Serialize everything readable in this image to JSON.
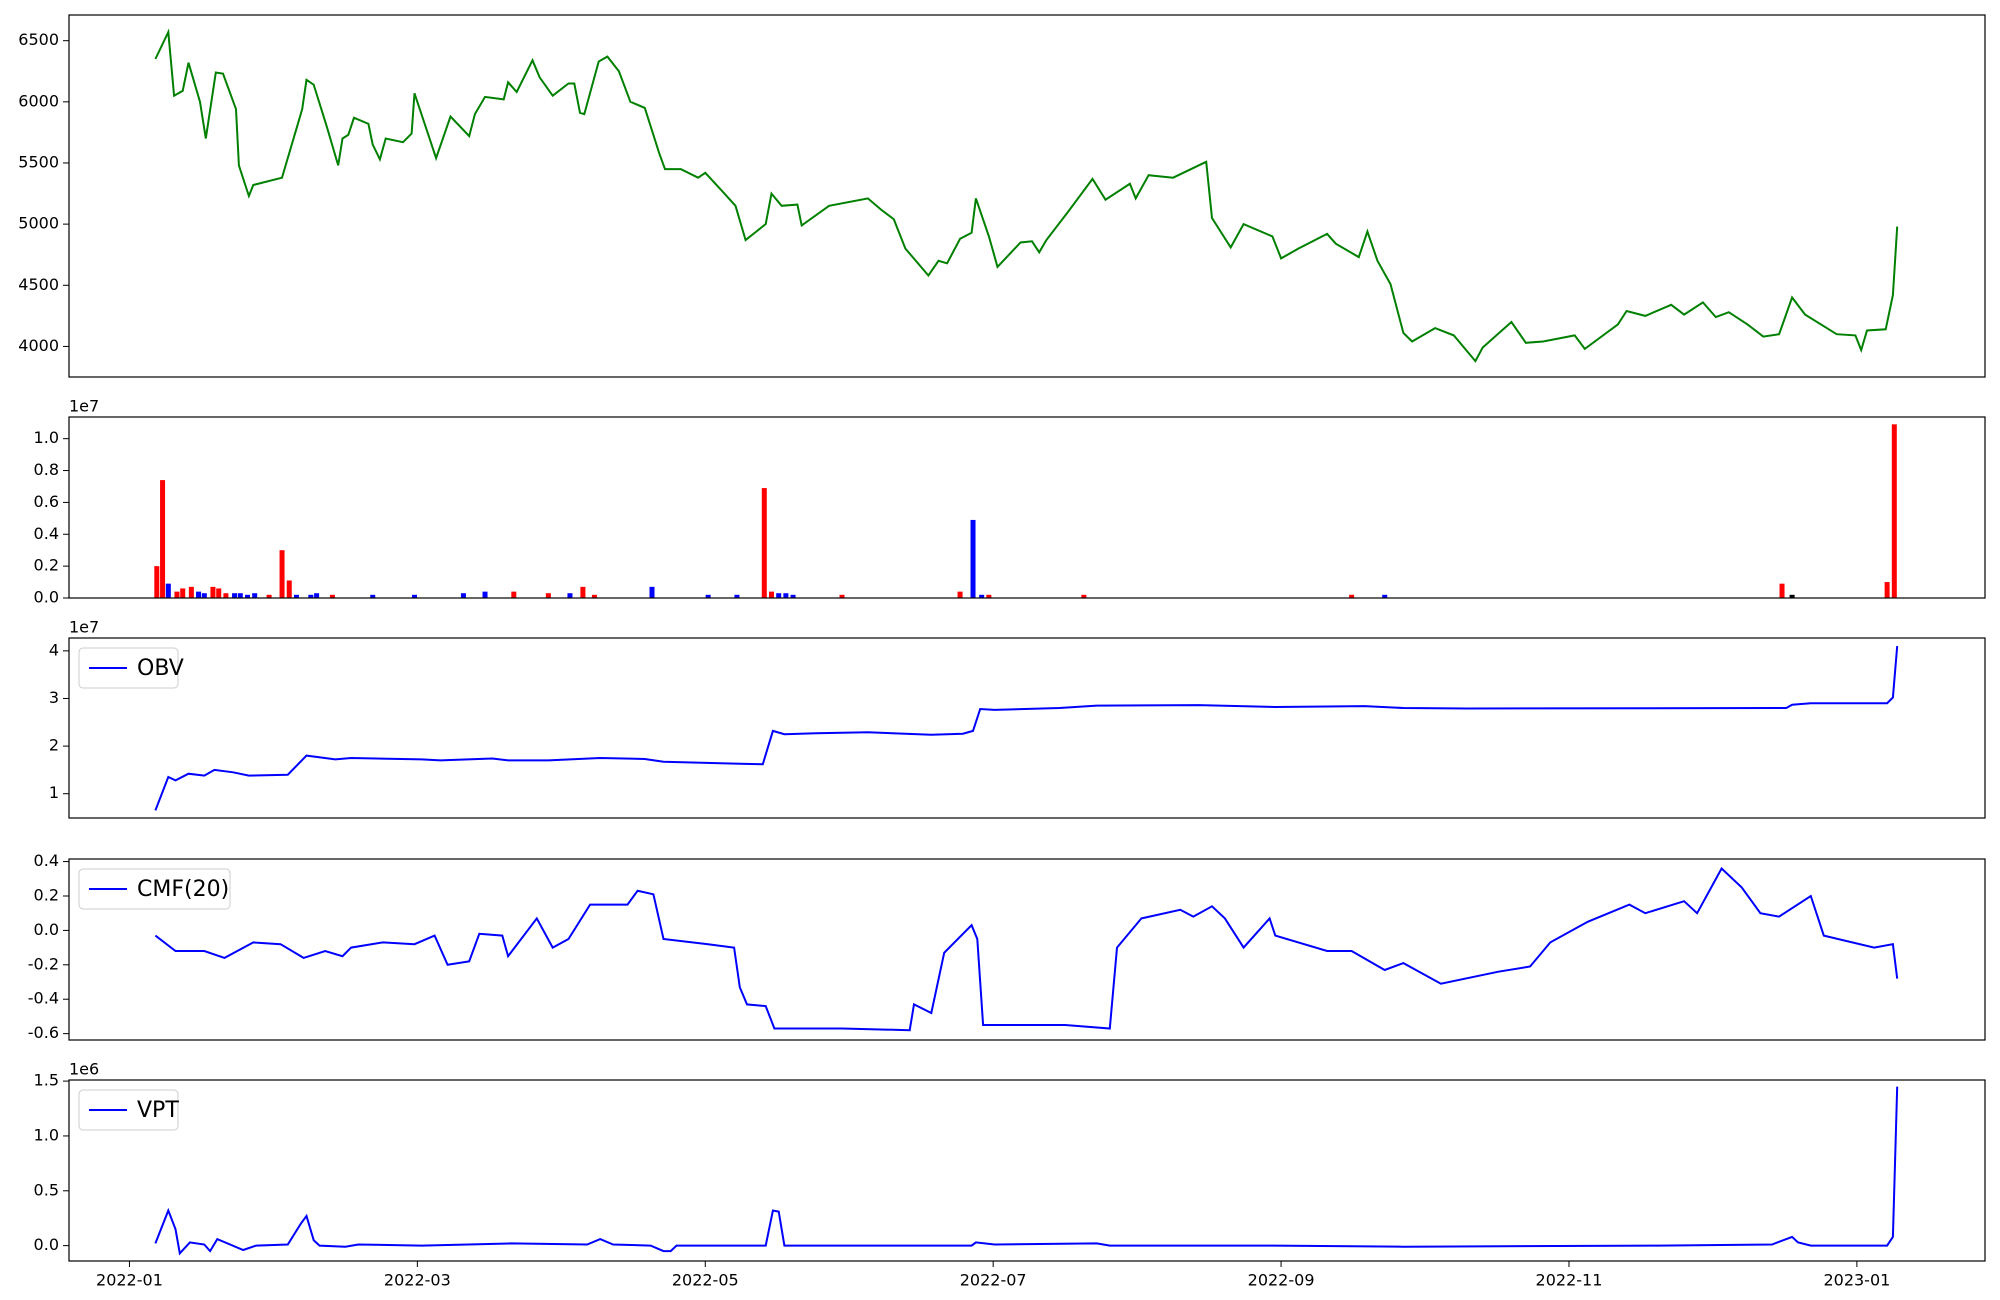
{
  "chart_data": [
    {
      "type": "line",
      "color": "#008000",
      "xlim": [
        -0.42,
        12.89
      ],
      "ylim": [
        3750,
        6710
      ],
      "yticks": [
        4000,
        4500,
        5000,
        5500,
        6000,
        6500
      ],
      "x": [
        0.18,
        0.27,
        0.31,
        0.37,
        0.41,
        0.49,
        0.53,
        0.6,
        0.65,
        0.74,
        0.76,
        0.83,
        0.86,
        1.06,
        1.2,
        1.23,
        1.28,
        1.37,
        1.45,
        1.48,
        1.52,
        1.56,
        1.66,
        1.69,
        1.74,
        1.78,
        1.9,
        1.96,
        1.98,
        2.13,
        2.23,
        2.36,
        2.4,
        2.47,
        2.6,
        2.63,
        2.69,
        2.8,
        2.85,
        2.94,
        3.05,
        3.09,
        3.13,
        3.16,
        3.26,
        3.32,
        3.4,
        3.48,
        3.58,
        3.68,
        3.72,
        3.83,
        3.95,
        4.0,
        4.11,
        4.21,
        4.28,
        4.42,
        4.46,
        4.53,
        4.64,
        4.67,
        4.86,
        5.13,
        5.22,
        5.31,
        5.39,
        5.55,
        5.62,
        5.68,
        5.77,
        5.85,
        5.88,
        5.97,
        6.03,
        6.19,
        6.27,
        6.32,
        6.37,
        6.52,
        6.69,
        6.78,
        6.95,
        6.99,
        7.08,
        7.25,
        7.48,
        7.52,
        7.65,
        7.74,
        7.94,
        8.0,
        8.12,
        8.32,
        8.38,
        8.54,
        8.6,
        8.67,
        8.76,
        8.85,
        8.91,
        9.07,
        9.2,
        9.35,
        9.4,
        9.6,
        9.7,
        9.82,
        10.04,
        10.11,
        10.34,
        10.4,
        10.53,
        10.71,
        10.8,
        10.93,
        11.02,
        11.11,
        11.24,
        11.35,
        11.46,
        11.55,
        11.64,
        11.86,
        11.99,
        12.03,
        12.07,
        12.2,
        12.25,
        12.28
      ],
      "values": [
        6350,
        6570,
        6050,
        6090,
        6320,
        6000,
        5700,
        6240,
        6230,
        5940,
        5480,
        5230,
        5320,
        5380,
        5940,
        6180,
        6140,
        5800,
        5480,
        5700,
        5730,
        5870,
        5820,
        5650,
        5530,
        5700,
        5670,
        5740,
        6070,
        5540,
        5880,
        5720,
        5900,
        6040,
        6020,
        6160,
        6080,
        6340,
        6200,
        6050,
        6150,
        6150,
        5910,
        5900,
        6330,
        6370,
        6250,
        6000,
        5950,
        5580,
        5450,
        5450,
        5380,
        5420,
        5280,
        5150,
        4870,
        5000,
        5250,
        5150,
        5160,
        4990,
        5150,
        5210,
        5120,
        5040,
        4800,
        4580,
        4700,
        4680,
        4880,
        4930,
        5210,
        4900,
        4650,
        4850,
        4860,
        4770,
        4870,
        5100,
        5370,
        5200,
        5330,
        5210,
        5400,
        5380,
        5510,
        5050,
        4810,
        5000,
        4900,
        4720,
        4800,
        4920,
        4840,
        4730,
        4940,
        4700,
        4510,
        4110,
        4040,
        4150,
        4090,
        3880,
        3990,
        4200,
        4030,
        4040,
        4090,
        3980,
        4180,
        4290,
        4250,
        4340,
        4260,
        4360,
        4240,
        4280,
        4180,
        4080,
        4100,
        4400,
        4260,
        4100,
        4090,
        3970,
        4130,
        4140,
        4420,
        4980
      ]
    },
    {
      "type": "bar",
      "offset_label": "1e7",
      "xlim": [
        -0.42,
        12.89
      ],
      "ylim": [
        0,
        1.136
      ],
      "yticks": [
        {
          "value": 0,
          "label": "0.0"
        },
        0.2,
        0.4,
        0.6,
        0.8,
        {
          "value": 1,
          "label": "1.0"
        }
      ],
      "x": [
        0.19,
        0.23,
        0.27,
        0.33,
        0.37,
        0.43,
        0.48,
        0.52,
        0.58,
        0.62,
        0.67,
        0.73,
        0.77,
        0.82,
        0.87,
        0.97,
        1.06,
        1.11,
        1.16,
        1.26,
        1.3,
        1.41,
        1.69,
        1.98,
        2.32,
        2.47,
        2.67,
        2.91,
        3.06,
        3.15,
        3.23,
        3.63,
        4.02,
        4.22,
        4.41,
        4.46,
        4.51,
        4.56,
        4.61,
        4.95,
        5.77,
        5.86,
        5.92,
        5.97,
        6.63,
        8.49,
        8.72,
        11.48,
        11.55,
        12.21,
        12.26
      ],
      "values": [
        0.2,
        0.74,
        0.09,
        0.04,
        0.06,
        0.07,
        0.04,
        0.03,
        0.07,
        0.06,
        0.03,
        0.03,
        0.03,
        0.02,
        0.03,
        0.02,
        0.3,
        0.11,
        0.02,
        0.02,
        0.03,
        0.02,
        0.02,
        0.02,
        0.03,
        0.04,
        0.04,
        0.03,
        0.03,
        0.07,
        0.02,
        0.07,
        0.02,
        0.02,
        0.69,
        0.04,
        0.03,
        0.03,
        0.02,
        0.02,
        0.04,
        0.49,
        0.02,
        0.02,
        0.02,
        0.02,
        0.02,
        0.09,
        0.02,
        0.1,
        1.09
      ],
      "colors": [
        "#ff0000",
        "#ff0000",
        "#0000ff",
        "#ff0000",
        "#ff0000",
        "#ff0000",
        "#0000ff",
        "#0000ff",
        "#ff0000",
        "#ff0000",
        "#ff0000",
        "#0000ff",
        "#0000ff",
        "#0000ff",
        "#0000ff",
        "#ff0000",
        "#ff0000",
        "#ff0000",
        "#0000ff",
        "#0000ff",
        "#0000ff",
        "#ff0000",
        "#0000ff",
        "#0000ff",
        "#0000ff",
        "#0000ff",
        "#ff0000",
        "#ff0000",
        "#0000ff",
        "#ff0000",
        "#ff0000",
        "#0000ff",
        "#0000ff",
        "#0000ff",
        "#ff0000",
        "#ff0000",
        "#0000ff",
        "#0000ff",
        "#0000ff",
        "#ff0000",
        "#ff0000",
        "#0000ff",
        "#0000ff",
        "#ff0000",
        "#ff0000",
        "#ff0000",
        "#0000ff",
        "#ff0000",
        "#000000",
        "#ff0000",
        "#ff0000"
      ]
    },
    {
      "type": "line",
      "offset_label": "1e7",
      "xlim": [
        -0.42,
        12.89
      ],
      "ylim": [
        0.49,
        4.27
      ],
      "yticks": [
        1,
        2,
        3,
        4
      ],
      "x": [
        0.18,
        0.27,
        0.32,
        0.41,
        0.52,
        0.59,
        0.72,
        0.83,
        1.1,
        1.23,
        1.43,
        1.54,
        2.03,
        2.16,
        2.52,
        2.63,
        2.91,
        3.27,
        3.58,
        3.71,
        4.24,
        4.4,
        4.47,
        4.55,
        4.77,
        5.13,
        5.57,
        5.79,
        5.86,
        5.91,
        6.01,
        6.46,
        6.72,
        7.43,
        7.96,
        8.58,
        8.85,
        9.29,
        11.51,
        11.55,
        11.68,
        12.21,
        12.25,
        12.28
      ],
      "series": [
        {
          "name": "OBV",
          "color": "#0000ff",
          "values": [
            0.65,
            1.35,
            1.28,
            1.42,
            1.38,
            1.5,
            1.45,
            1.38,
            1.4,
            1.8,
            1.72,
            1.75,
            1.72,
            1.7,
            1.74,
            1.7,
            1.7,
            1.75,
            1.73,
            1.67,
            1.63,
            1.62,
            2.32,
            2.25,
            2.27,
            2.29,
            2.24,
            2.26,
            2.32,
            2.78,
            2.76,
            2.8,
            2.85,
            2.86,
            2.82,
            2.84,
            2.8,
            2.79,
            2.8,
            2.87,
            2.9,
            2.9,
            3.02,
            4.1
          ]
        }
      ]
    },
    {
      "type": "line",
      "xlim": [
        -0.42,
        12.89
      ],
      "ylim": [
        -0.637,
        0.415
      ],
      "yticks": [
        -0.6,
        -0.4,
        -0.2,
        {
          "value": 0,
          "label": "0.0"
        },
        0.2,
        0.4
      ],
      "x": [
        0.18,
        0.32,
        0.52,
        0.66,
        0.86,
        1.05,
        1.21,
        1.36,
        1.48,
        1.54,
        1.76,
        1.98,
        2.12,
        2.21,
        2.36,
        2.43,
        2.59,
        2.63,
        2.83,
        2.94,
        3.05,
        3.2,
        3.46,
        3.53,
        3.64,
        3.71,
        4.02,
        4.2,
        4.24,
        4.29,
        4.42,
        4.48,
        4.95,
        5.42,
        5.45,
        5.57,
        5.66,
        5.85,
        5.89,
        5.93,
        6.5,
        6.81,
        6.86,
        7.03,
        7.3,
        7.39,
        7.52,
        7.61,
        7.74,
        7.92,
        7.96,
        8.32,
        8.49,
        8.72,
        8.85,
        9.11,
        9.51,
        9.73,
        9.87,
        10.13,
        10.42,
        10.53,
        10.8,
        10.89,
        11.06,
        11.2,
        11.33,
        11.46,
        11.68,
        11.77,
        12.12,
        12.25,
        12.28
      ],
      "series": [
        {
          "name": "CMF(20)",
          "color": "#0000ff",
          "values": [
            -0.03,
            -0.12,
            -0.12,
            -0.16,
            -0.07,
            -0.08,
            -0.16,
            -0.12,
            -0.15,
            -0.1,
            -0.07,
            -0.08,
            -0.03,
            -0.2,
            -0.18,
            -0.02,
            -0.03,
            -0.15,
            0.07,
            -0.1,
            -0.05,
            0.15,
            0.15,
            0.23,
            0.21,
            -0.05,
            -0.08,
            -0.1,
            -0.33,
            -0.43,
            -0.44,
            -0.57,
            -0.57,
            -0.58,
            -0.43,
            -0.48,
            -0.13,
            0.03,
            -0.05,
            -0.55,
            -0.55,
            -0.57,
            -0.1,
            0.07,
            0.12,
            0.08,
            0.14,
            0.07,
            -0.1,
            0.07,
            -0.03,
            -0.12,
            -0.12,
            -0.23,
            -0.19,
            -0.31,
            -0.24,
            -0.21,
            -0.07,
            0.05,
            0.15,
            0.1,
            0.17,
            0.1,
            0.36,
            0.25,
            0.1,
            0.08,
            0.2,
            -0.03,
            -0.1,
            -0.08,
            -0.28
          ]
        }
      ]
    },
    {
      "type": "line",
      "offset_label": "1e6",
      "xlim": [
        -0.42,
        12.89
      ],
      "ylim": [
        -0.14,
        1.51
      ],
      "yticks": [
        {
          "value": 0,
          "label": "0.0"
        },
        0.5,
        {
          "value": 1,
          "label": "1.0"
        },
        1.5
      ],
      "xticks": [
        {
          "value": 0,
          "label": "2022-01"
        },
        {
          "value": 2,
          "label": "2022-03"
        },
        {
          "value": 4,
          "label": "2022-05"
        },
        {
          "value": 6,
          "label": "2022-07"
        },
        {
          "value": 8,
          "label": "2022-09"
        },
        {
          "value": 10,
          "label": "2022-11"
        },
        {
          "value": 12,
          "label": "2023-01"
        }
      ],
      "x": [
        0.18,
        0.27,
        0.32,
        0.35,
        0.42,
        0.52,
        0.56,
        0.61,
        0.79,
        0.88,
        1.1,
        1.19,
        1.23,
        1.28,
        1.32,
        1.5,
        1.59,
        2.03,
        2.65,
        3.18,
        3.27,
        3.36,
        3.62,
        3.71,
        3.76,
        3.8,
        4.42,
        4.47,
        4.51,
        4.55,
        5.85,
        5.88,
        6.01,
        6.72,
        6.81,
        7.96,
        8.85,
        10.62,
        11.41,
        11.55,
        11.59,
        11.68,
        12.21,
        12.25,
        12.28
      ],
      "series": [
        {
          "name": "VPT",
          "color": "#0000ff",
          "values": [
            0.02,
            0.32,
            0.15,
            -0.07,
            0.03,
            0.01,
            -0.05,
            0.06,
            -0.04,
            0.0,
            0.01,
            0.2,
            0.27,
            0.05,
            0.0,
            -0.01,
            0.01,
            0.0,
            0.02,
            0.01,
            0.06,
            0.01,
            0.0,
            -0.05,
            -0.05,
            0.0,
            0.0,
            0.32,
            0.31,
            0.0,
            0.0,
            0.03,
            0.01,
            0.02,
            0.0,
            0.0,
            -0.01,
            0.0,
            0.01,
            0.08,
            0.03,
            0.0,
            0.0,
            0.08,
            1.45
          ]
        }
      ]
    }
  ]
}
